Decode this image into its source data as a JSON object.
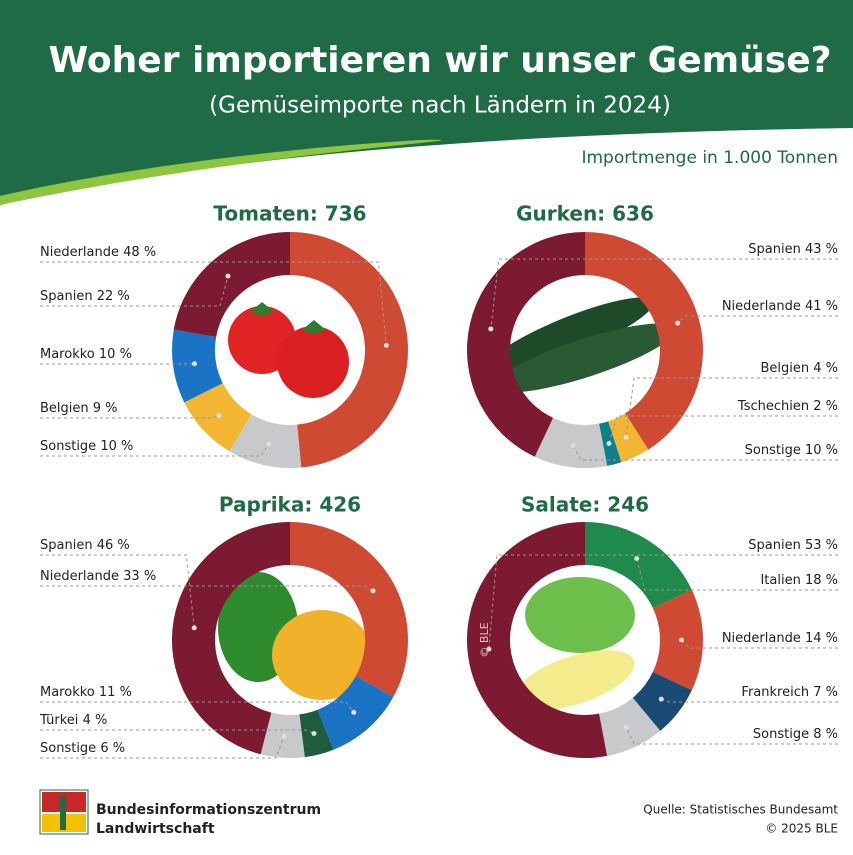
{
  "header": {
    "title": "Woher importieren wir unser Gemüse?",
    "subtitle": "(Gemüseimporte nach Ländern in 2024)",
    "unit_note": "Importmenge in 1.000 Tonnen"
  },
  "chart_data": [
    {
      "type": "donut",
      "title": "Tomaten: 736",
      "categories": [
        "Niederlande",
        "Spanien",
        "Marokko",
        "Belgien",
        "Sonstige"
      ],
      "values": [
        48,
        22,
        10,
        9,
        10
      ],
      "value_labels": [
        "48 %",
        "22 %",
        "10 %",
        "9 %",
        "10 %"
      ],
      "colors": [
        "#cf4a33",
        "#7b1a30",
        "#1a73c4",
        "#f2b633",
        "#c8c9cb"
      ]
    },
    {
      "type": "donut",
      "title": "Gurken: 636",
      "categories": [
        "Spanien",
        "Niederlande",
        "Belgien",
        "Tschechien",
        "Sonstige"
      ],
      "values": [
        43,
        41,
        4,
        2,
        10
      ],
      "value_labels": [
        "43 %",
        "41 %",
        "4 %",
        "2 %",
        "10 %"
      ],
      "colors": [
        "#7b1a30",
        "#cf4a33",
        "#f2b633",
        "#0f7f8a",
        "#c8c9cb"
      ]
    },
    {
      "type": "donut",
      "title": "Paprika: 426",
      "categories": [
        "Spanien",
        "Niederlande",
        "Marokko",
        "Türkei",
        "Sonstige"
      ],
      "values": [
        46,
        33,
        11,
        4,
        6
      ],
      "value_labels": [
        "46 %",
        "33 %",
        "11 %",
        "4 %",
        "6 %"
      ],
      "colors": [
        "#7b1a30",
        "#cf4a33",
        "#1a73c4",
        "#1d5c3c",
        "#c8c9cb"
      ]
    },
    {
      "type": "donut",
      "title": "Salate: 246",
      "categories": [
        "Spanien",
        "Italien",
        "Niederlande",
        "Frankreich",
        "Sonstige"
      ],
      "values": [
        53,
        18,
        14,
        7,
        8
      ],
      "value_labels": [
        "53 %",
        "18 %",
        "14 %",
        "7 %",
        "8 %"
      ],
      "colors": [
        "#7b1a30",
        "#1f8a4c",
        "#cf4a33",
        "#1b4a72",
        "#c8c9cb"
      ],
      "watermark": "© BLE"
    }
  ],
  "footer": {
    "org_line1": "Bundesinformationszentrum",
    "org_line2": "Landwirtschaft",
    "source": "Quelle: Statistisches Bundesamt",
    "copyright": "© 2025 BLE"
  }
}
